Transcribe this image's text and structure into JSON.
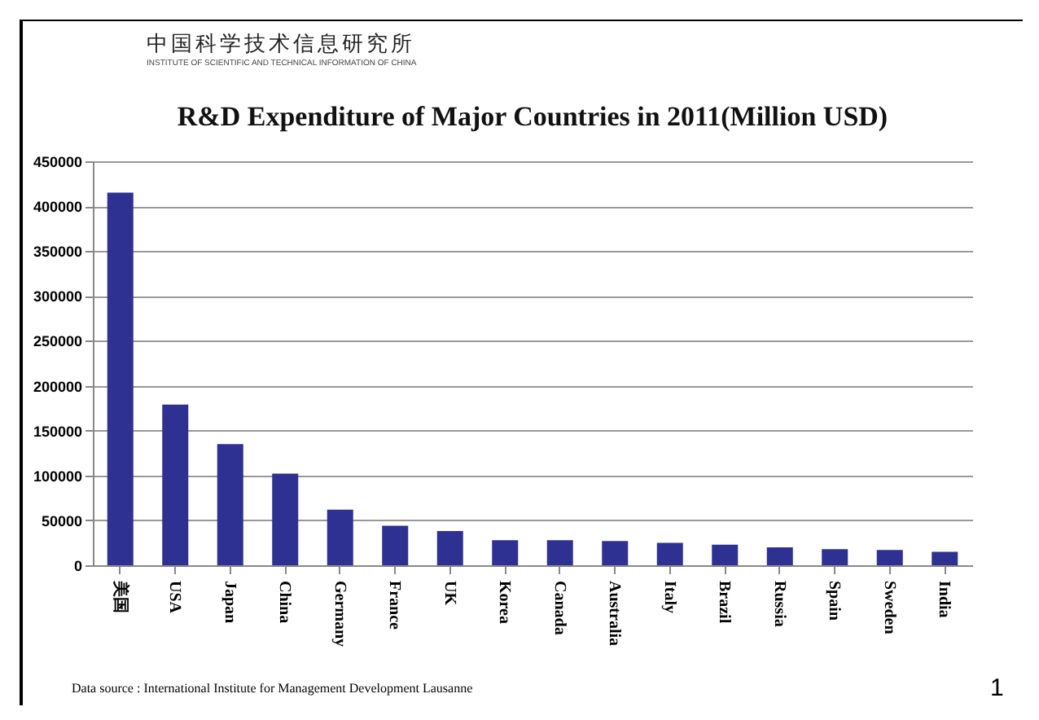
{
  "chart_data": {
    "type": "bar",
    "title": "R&D Expenditure of Major Countries in 2011(Million USD)",
    "categories": [
      "美国",
      "USA",
      "Japan",
      "China",
      "Germany",
      "France",
      "UK",
      "Korea",
      "Canada",
      "Australia",
      "Italy",
      "Brazil",
      "Russia",
      "Spain",
      "Sweden",
      "India"
    ],
    "values": [
      415000,
      179000,
      135000,
      102000,
      62000,
      44000,
      38000,
      28000,
      28000,
      27000,
      25000,
      23000,
      20000,
      18000,
      17000,
      15000
    ],
    "color": "#2e3192",
    "ylim": [
      0,
      450000
    ],
    "yticks": [
      0,
      50000,
      100000,
      150000,
      200000,
      250000,
      300000,
      350000,
      400000,
      450000
    ],
    "grid": "y",
    "annotations": [
      "中国科学技术信息研究所",
      "INSTITUTE OF SCIENTIFIC AND TECHNICAL INFORMATION OF CHINA",
      "Data source : International Institute for Management Development  Lausanne",
      "1"
    ]
  }
}
